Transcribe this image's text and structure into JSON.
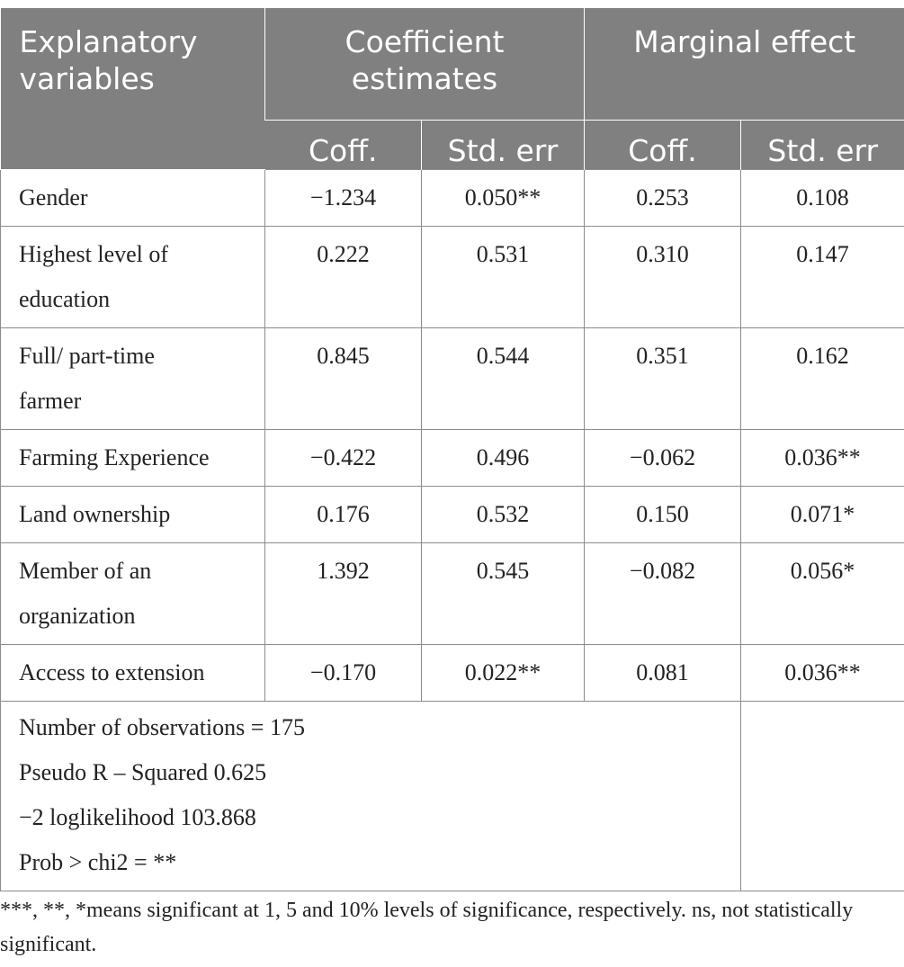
{
  "table": {
    "header": {
      "explanatory": "Explanatory variables",
      "coef_group": "Coefficient estimates",
      "marginal_group": "Marginal effect",
      "sub": [
        "Coff.",
        "Std. err",
        "Coff.",
        "Std. err"
      ]
    },
    "rows": [
      {
        "label": "Gender",
        "coef": "−1.234",
        "coef_se": "0.050**",
        "me": "0.253",
        "me_se": "0.108"
      },
      {
        "label": "Highest level of education",
        "coef": "0.222",
        "coef_se": "0.531",
        "me": "0.310",
        "me_se": "0.147"
      },
      {
        "label": "Full/ part-time farmer",
        "coef": "0.845",
        "coef_se": "0.544",
        "me": "0.351",
        "me_se": "0.162"
      },
      {
        "label": "Farming Experience",
        "coef": "−0.422",
        "coef_se": "0.496",
        "me": "−0.062",
        "me_se": "0.036**"
      },
      {
        "label": "Land ownership",
        "coef": "0.176",
        "coef_se": "0.532",
        "me": "0.150",
        "me_se": "0.071*"
      },
      {
        "label": "Member of an organization",
        "coef": "1.392",
        "coef_se": "0.545",
        "me": "−0.082",
        "me_se": "0.056*"
      },
      {
        "label": "Access to extension",
        "coef": "−0.170",
        "coef_se": "0.022**",
        "me": "0.081",
        "me_se": "0.036**"
      }
    ],
    "footer": [
      "Number of observations = 175",
      "Pseudo R – Squared 0.625",
      "−2 loglikelihood 103.868",
      "Prob > chi2 = **"
    ]
  },
  "note": "***, **, *means significant at 1, 5 and 10% levels of significance, respectively. ns, not statistically significant."
}
